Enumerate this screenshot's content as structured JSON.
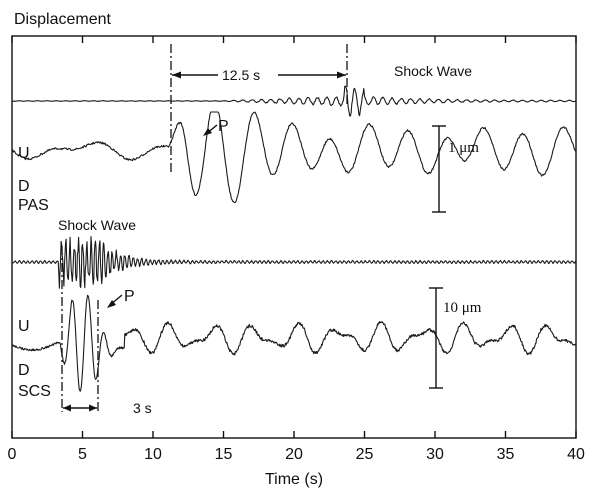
{
  "chart_data": {
    "type": "line",
    "title": "Displacement",
    "xlabel": "Time (s)",
    "xlim": [
      0,
      40
    ],
    "x_ticks": [
      0,
      5,
      10,
      15,
      20,
      25,
      30,
      35,
      40
    ],
    "grid": false,
    "panels": [
      {
        "station": "PAS",
        "direction_labels": [
          "U",
          "D"
        ],
        "scale_bar": "1 μm",
        "shock_wave_label": "Shock Wave",
        "interval_label": "12.5 s",
        "interval": [
          11.2,
          23.7
        ],
        "phase_label": "P",
        "phase_time": 13.0,
        "shock_wave_onset": 23.7
      },
      {
        "station": "SCS",
        "direction_labels": [
          "U",
          "D"
        ],
        "scale_bar": "10 μm",
        "shock_wave_label": "Shock Wave",
        "interval_label": "3 s",
        "interval": [
          3.4,
          6.3
        ],
        "phase_label": "P",
        "phase_time": 6.4,
        "shock_wave_onset": 3.4
      }
    ]
  }
}
